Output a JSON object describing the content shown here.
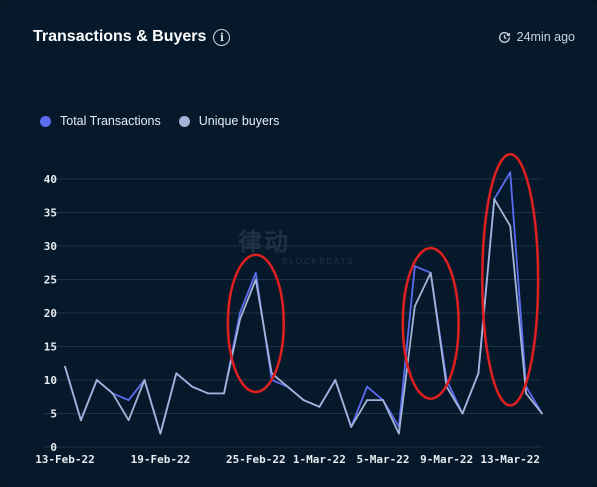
{
  "header": {
    "title": "Transactions & Buyers",
    "info_icon": "info-icon",
    "updated_icon": "clock-refresh-icon",
    "updated": "24min ago"
  },
  "watermark": {
    "main": "律动",
    "sub": "BLOCKBEATS"
  },
  "colors": {
    "total": "#5b6cf0",
    "unique": "#a4b4d8",
    "highlight": "#e02020",
    "grid": "#1c3347"
  },
  "chart_data": {
    "type": "line",
    "legend_position": "top-left",
    "grid": true,
    "ylim": [
      0,
      40
    ],
    "yticks": [
      0,
      5,
      10,
      15,
      20,
      25,
      30,
      35,
      40
    ],
    "xtick_labels": [
      "13-Feb-22",
      "19-Feb-22",
      "25-Feb-22",
      "1-Mar-22",
      "5-Mar-22",
      "9-Mar-22",
      "13-Mar-22"
    ],
    "xtick_index": [
      0,
      6,
      12,
      16,
      20,
      24,
      28
    ],
    "series": [
      {
        "name": "Total Transactions",
        "values": [
          12,
          4,
          10,
          8,
          7,
          10,
          2,
          11,
          9,
          8,
          8,
          20,
          26,
          10,
          9,
          7,
          6,
          10,
          3,
          9,
          7,
          3,
          27,
          26,
          10,
          5,
          11,
          37,
          41,
          9,
          5
        ]
      },
      {
        "name": "Unique buyers",
        "values": [
          12,
          4,
          10,
          8,
          4,
          10,
          2,
          11,
          9,
          8,
          8,
          19,
          25,
          11,
          9,
          7,
          6,
          10,
          3,
          7,
          7,
          2,
          21,
          26,
          9,
          5,
          11,
          37,
          33,
          8,
          5
        ]
      }
    ],
    "highlight_index_ranges": [
      [
        11,
        13
      ],
      [
        22,
        24
      ],
      [
        27,
        29
      ]
    ]
  }
}
